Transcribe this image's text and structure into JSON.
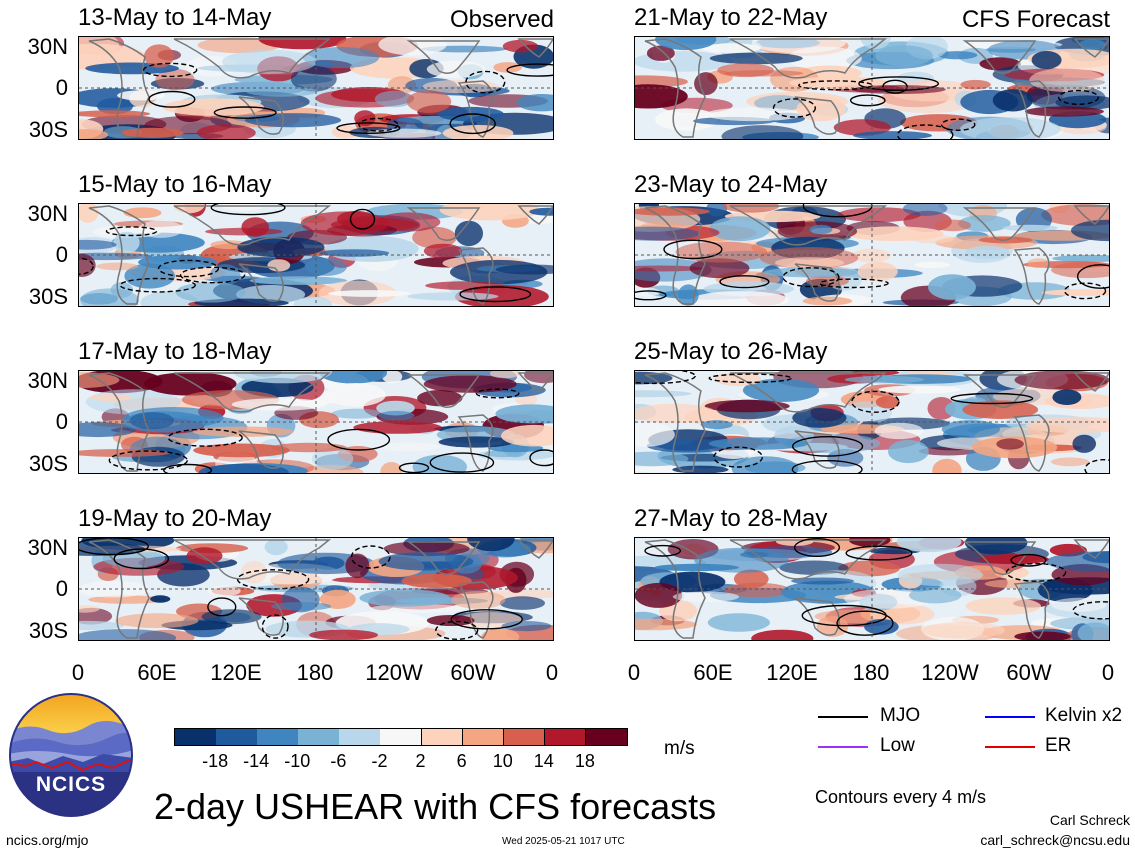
{
  "observed_label": "Observed",
  "forecast_label": "CFS Forecast",
  "panels_left": [
    {
      "title": "13-May to 14-May"
    },
    {
      "title": "15-May to 16-May"
    },
    {
      "title": "17-May to 18-May"
    },
    {
      "title": "19-May to 20-May"
    }
  ],
  "panels_right": [
    {
      "title": "21-May to 22-May"
    },
    {
      "title": "23-May to 24-May"
    },
    {
      "title": "25-May to 26-May"
    },
    {
      "title": "27-May to 28-May"
    }
  ],
  "lat_labels": [
    "30N",
    "0",
    "30S"
  ],
  "lon_labels": [
    "0",
    "60E",
    "120E",
    "180",
    "120W",
    "60W",
    "0"
  ],
  "colorbar": {
    "ticks": [
      "-18",
      "-14",
      "-10",
      "-6",
      "-2",
      "2",
      "6",
      "10",
      "14",
      "18"
    ],
    "colors": [
      "#08306b",
      "#1f5a9e",
      "#3f86c0",
      "#7ab2d6",
      "#b9d7ea",
      "#f7f7f7",
      "#fdd3bd",
      "#f4a582",
      "#d6604d",
      "#b2182b",
      "#67001f"
    ],
    "unit": "m/s"
  },
  "legend": {
    "items": [
      {
        "label": "MJO",
        "color": "#000000"
      },
      {
        "label": "Kelvin x2",
        "color": "#0000ff"
      },
      {
        "label": "Low",
        "color": "#9b30ff"
      },
      {
        "label": "ER",
        "color": "#e00000"
      }
    ],
    "contours_note": "Contours every 4 m/s"
  },
  "logo_text": "NCICS",
  "main_title": "2-day USHEAR with CFS forecasts",
  "footer": {
    "url": "ncics.org/mjo",
    "timestamp": "Wed 2025-05-21 1017 UTC",
    "author": "Carl Schreck",
    "email": "carl_schreck@ncsu.edu"
  }
}
